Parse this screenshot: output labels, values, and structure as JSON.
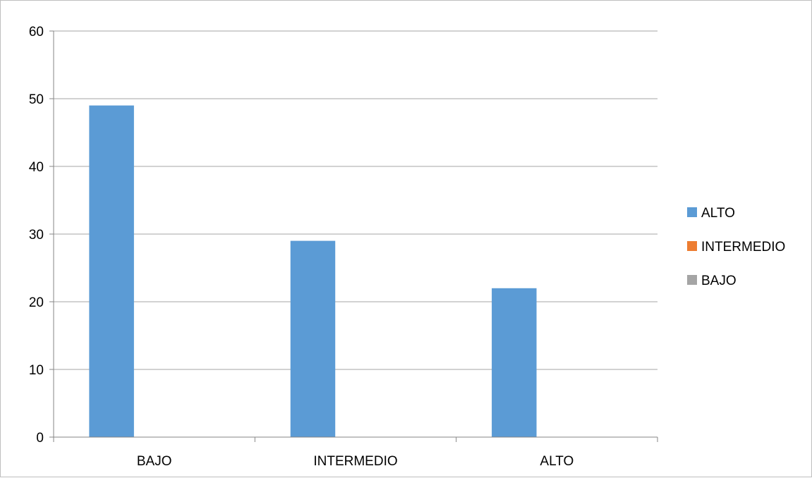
{
  "chart_data": {
    "type": "bar",
    "title": "",
    "xlabel": "",
    "ylabel": "",
    "categories": [
      "BAJO",
      "INTERMEDIO",
      "ALTO"
    ],
    "series": [
      {
        "name": "ALTO",
        "color": "#5b9bd5",
        "values": [
          49,
          29,
          22
        ]
      },
      {
        "name": "INTERMEDIO",
        "color": "#ed7d31",
        "values": [
          0,
          0,
          0
        ]
      },
      {
        "name": "BAJO",
        "color": "#a5a5a5",
        "values": [
          0,
          0,
          0
        ]
      }
    ],
    "ylim": [
      0,
      60
    ],
    "yticks": [
      0,
      10,
      20,
      30,
      40,
      50,
      60
    ],
    "grid": true,
    "legend_position": "right"
  }
}
